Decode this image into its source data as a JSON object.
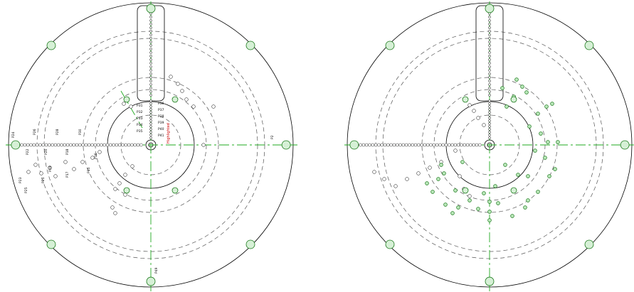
{
  "colors": {
    "outline": "#000000",
    "centerline": "#22aa22",
    "target_fill": "#b9e6b9",
    "highlight_text": "#cc0000"
  },
  "left_disk": {
    "slot_labels_upper": [
      "P31",
      "P32",
      "P33",
      "P34",
      "P35"
    ],
    "slot_labels_lower": [
      "P36",
      "P37",
      "P38",
      "P39",
      "P40",
      "P41"
    ],
    "row_labels": [
      "P24",
      "P26",
      "P28",
      "P30",
      "P22",
      "P20",
      "P18",
      "P16"
    ],
    "scatter_labels": [
      "P23",
      "P25",
      "P21",
      "P19",
      "P17",
      "P15"
    ],
    "side_label_right": "P2",
    "bottom_label": "P49",
    "highlight_label": "Highlighted"
  },
  "right_disk": {
    "target_count": 42
  }
}
